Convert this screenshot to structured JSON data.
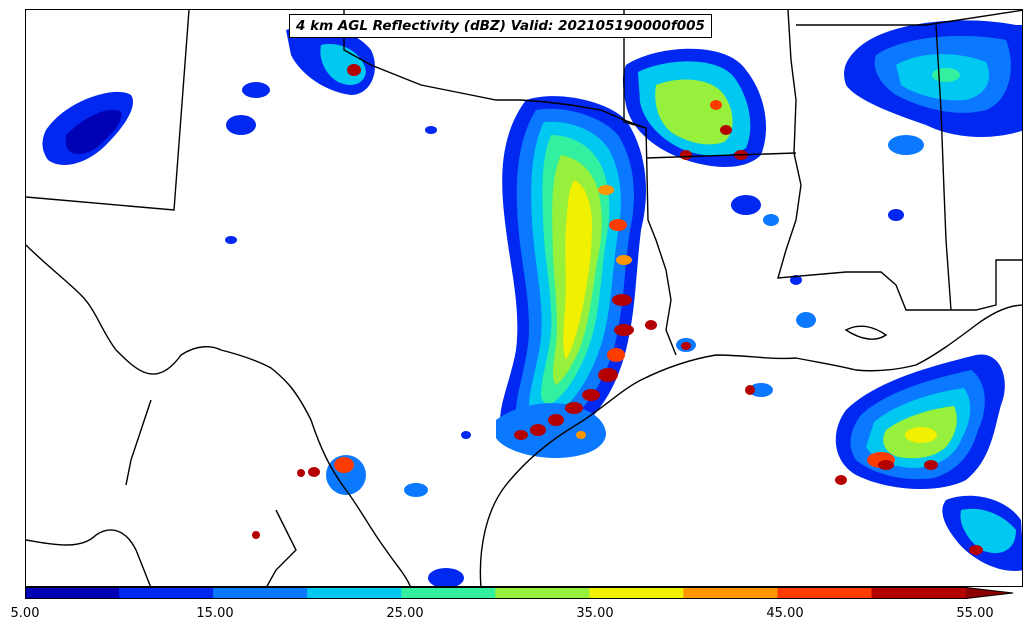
{
  "title": "4 km AGL Reflectivity (dBZ) Valid: 202105190000f005",
  "colorbar": {
    "bins": [
      5,
      10,
      15,
      20,
      25,
      30,
      35,
      40,
      45,
      50,
      55
    ],
    "colors": [
      "#0000b4",
      "#0028f0",
      "#0a78ff",
      "#00c8f0",
      "#32f0a0",
      "#96f03c",
      "#f0f000",
      "#ff9600",
      "#ff3c00",
      "#b40000"
    ],
    "extend_color": "#8c0000",
    "tick_labels": [
      "5.00",
      "15.00",
      "25.00",
      "35.00",
      "45.00",
      "55.00"
    ],
    "extend": "max"
  },
  "chart_data": {
    "type": "heatmap",
    "variable": "4 km AGL Reflectivity",
    "units": "dBZ",
    "valid": "202105190000f005",
    "range": [
      5,
      55
    ]
  }
}
